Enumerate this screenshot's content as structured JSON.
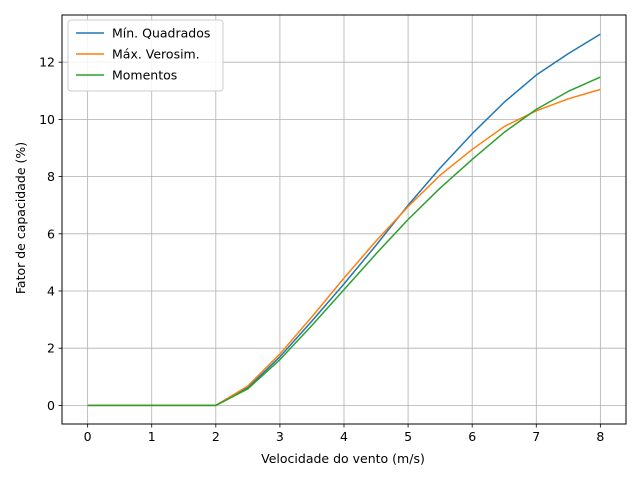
{
  "chart_data": {
    "type": "line",
    "xlabel": "Velocidade do vento (m/s)",
    "ylabel": "Fator de capacidade (%)",
    "xlim": [
      -0.4,
      8.4
    ],
    "ylim": [
      -0.65,
      13.65
    ],
    "xticks": [
      0,
      1,
      2,
      3,
      4,
      5,
      6,
      7,
      8
    ],
    "yticks": [
      0,
      2,
      4,
      6,
      8,
      10,
      12
    ],
    "grid": true,
    "legend_position": "top-left",
    "x": [
      0,
      0.5,
      1,
      1.5,
      2,
      2.5,
      3,
      3.5,
      4,
      4.5,
      5,
      5.5,
      6,
      6.5,
      7,
      7.5,
      8
    ],
    "series": [
      {
        "name": "Mín. Quadrados",
        "color": "#1f77b4",
        "values": [
          0,
          0,
          0,
          0,
          0,
          0.62,
          1.7,
          2.95,
          4.25,
          5.6,
          7.0,
          8.3,
          9.5,
          10.6,
          11.55,
          12.3,
          12.98
        ]
      },
      {
        "name": "Máx. Verosim.",
        "color": "#ff7f0e",
        "values": [
          0,
          0,
          0,
          0,
          0,
          0.68,
          1.8,
          3.1,
          4.45,
          5.75,
          6.95,
          8.05,
          8.95,
          9.75,
          10.3,
          10.72,
          11.05
        ]
      },
      {
        "name": "Momentos",
        "color": "#2ca02c",
        "values": [
          0,
          0,
          0,
          0,
          0,
          0.58,
          1.6,
          2.8,
          4.05,
          5.3,
          6.5,
          7.6,
          8.6,
          9.55,
          10.35,
          10.98,
          11.48
        ]
      }
    ]
  }
}
